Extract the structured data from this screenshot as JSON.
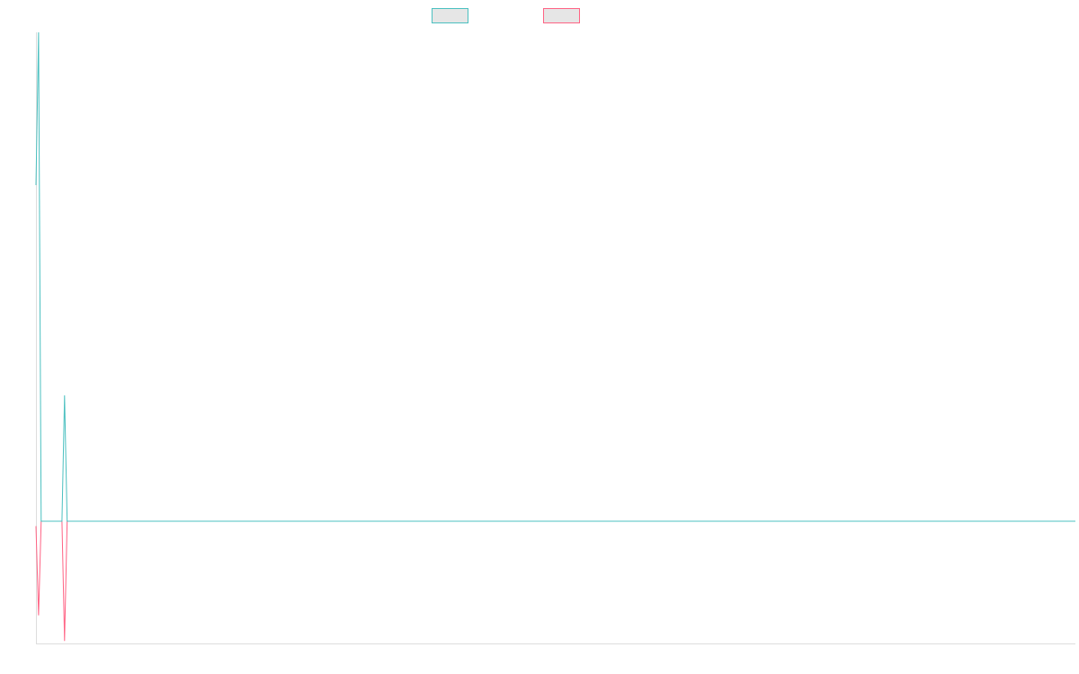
{
  "chart_data": {
    "type": "line",
    "title": "",
    "xlabel": "",
    "ylabel": "",
    "grid": false,
    "legend": {
      "position": "top-center",
      "entries": [
        {
          "label": "",
          "color": "#4bc0c0"
        },
        {
          "label": "",
          "color": "#ff6384"
        }
      ]
    },
    "xlim": [
      0,
      40
    ],
    "ylim": [
      -100,
      400
    ],
    "x": [
      0,
      0.1,
      0.2,
      1.0,
      1.1,
      1.2,
      40
    ],
    "series": [
      {
        "color": "#4bc0c0",
        "values": [
          275,
          400,
          0,
          0,
          103,
          0,
          0
        ]
      },
      {
        "color": "#ff6384",
        "values": [
          -4,
          -77,
          0,
          0,
          -98,
          0,
          0
        ]
      }
    ]
  }
}
